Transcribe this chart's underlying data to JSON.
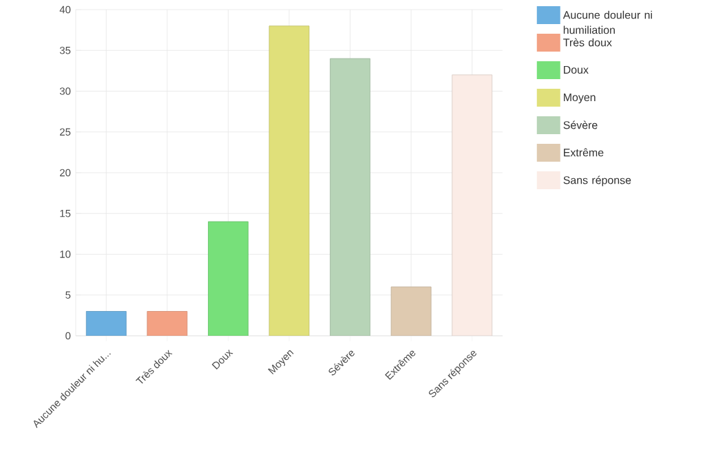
{
  "chart_data": {
    "type": "bar",
    "categories": [
      "Aucune douleur ni hu...",
      "Très doux",
      "Doux",
      "Moyen",
      "Sévère",
      "Extrême",
      "Sans réponse"
    ],
    "series": [
      {
        "name": "Aucune douleur ni humiliation",
        "color": "#6aafe0",
        "values": [
          3,
          null,
          null,
          null,
          null,
          null,
          null
        ]
      },
      {
        "name": "Très doux",
        "color": "#f3a183",
        "values": [
          null,
          3,
          null,
          null,
          null,
          null,
          null
        ]
      },
      {
        "name": "Doux",
        "color": "#77e07a",
        "values": [
          null,
          null,
          14,
          null,
          null,
          null,
          null
        ]
      },
      {
        "name": "Moyen",
        "color": "#e0e07a",
        "values": [
          null,
          null,
          null,
          38,
          null,
          null,
          null
        ]
      },
      {
        "name": "Sévère",
        "color": "#b7d4b7",
        "values": [
          null,
          null,
          null,
          null,
          34,
          null,
          null
        ]
      },
      {
        "name": "Extrême",
        "color": "#dfcab0",
        "values": [
          null,
          null,
          null,
          null,
          null,
          6,
          null
        ]
      },
      {
        "name": "Sans réponse",
        "color": "#fbece6",
        "values": [
          null,
          null,
          null,
          null,
          null,
          null,
          32
        ]
      }
    ],
    "ylim": [
      0,
      40
    ],
    "yticks": [
      0,
      5,
      10,
      15,
      20,
      25,
      30,
      35,
      40
    ],
    "grid": true,
    "legend": "right"
  }
}
